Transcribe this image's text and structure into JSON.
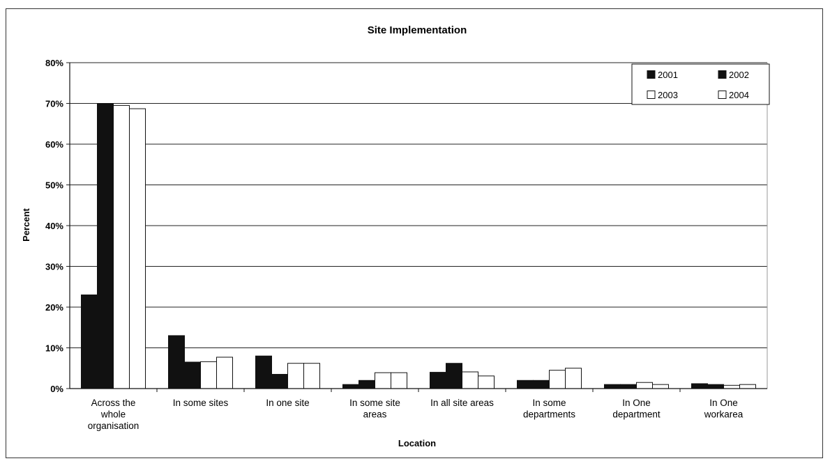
{
  "chart_data": {
    "type": "bar",
    "title": "Site Implementation",
    "xlabel": "Location",
    "ylabel": "Percent",
    "ylim": [
      0,
      0.8
    ],
    "yticks": [
      "0%",
      "10%",
      "20%",
      "30%",
      "40%",
      "50%",
      "60%",
      "70%",
      "80%"
    ],
    "grid": true,
    "legend_position": "top-right",
    "categories": [
      [
        "Across the",
        "whole",
        "organisation"
      ],
      [
        "In some sites"
      ],
      [
        "In one site"
      ],
      [
        "In some site",
        "areas"
      ],
      [
        "In all site areas"
      ],
      [
        "In some",
        "departments"
      ],
      [
        "In One",
        "department"
      ],
      [
        "In One",
        "workarea"
      ]
    ],
    "series": [
      {
        "name": "2001",
        "color": "#111111",
        "values": [
          0.23,
          0.13,
          0.08,
          0.01,
          0.04,
          0.02,
          0.01,
          0.012
        ]
      },
      {
        "name": "2002",
        "color": "#111111",
        "values": [
          0.7,
          0.065,
          0.035,
          0.02,
          0.062,
          0.02,
          0.01,
          0.01
        ]
      },
      {
        "name": "2003",
        "color": "#ffffff",
        "values": [
          0.695,
          0.066,
          0.062,
          0.039,
          0.041,
          0.045,
          0.015,
          0.008
        ]
      },
      {
        "name": "2004",
        "color": "#ffffff",
        "values": [
          0.687,
          0.077,
          0.062,
          0.039,
          0.031,
          0.05,
          0.01,
          0.01
        ]
      }
    ]
  }
}
